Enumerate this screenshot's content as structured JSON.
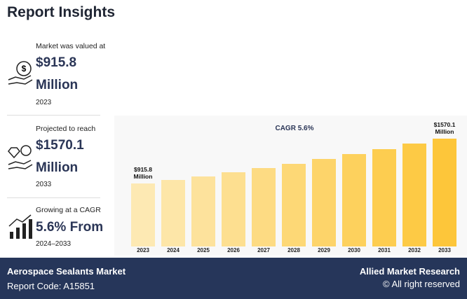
{
  "header": {
    "title": "Report Insights"
  },
  "stats": [
    {
      "label": "Market was valued at",
      "value": "$915.8 Million",
      "period": "2023"
    },
    {
      "label": "Projected to reach",
      "value": "$1570.1 Million",
      "period": "2033"
    },
    {
      "label": "Growing at a CAGR",
      "value": "5.6% From",
      "period": "2024–2033"
    }
  ],
  "chart_data": {
    "type": "bar",
    "annotation": "CAGR 5.6%",
    "categories": [
      "2023",
      "2024",
      "2025",
      "2026",
      "2027",
      "2028",
      "2029",
      "2030",
      "2031",
      "2032",
      "2033"
    ],
    "values": [
      915.8,
      967.1,
      1021.2,
      1078.4,
      1138.8,
      1202.6,
      1269.9,
      1341.0,
      1416.1,
      1495.4,
      1570.1
    ],
    "value_labels": [
      "$915.8 Million",
      null,
      null,
      null,
      null,
      null,
      null,
      null,
      null,
      null,
      "$1570.1 Million"
    ],
    "colors": [
      "#fde9b3",
      "#fde6a8",
      "#fde29c",
      "#fddf90",
      "#fddb83",
      "#fdd876",
      "#fdd46a",
      "#fdd15d",
      "#fdcd50",
      "#fdca45",
      "#fdc63a"
    ]
  },
  "footer": {
    "market": "Aerospace Sealants Market",
    "code": "Report Code: A15851",
    "brand": "Allied Market Research",
    "rights": "© All right reserved"
  }
}
